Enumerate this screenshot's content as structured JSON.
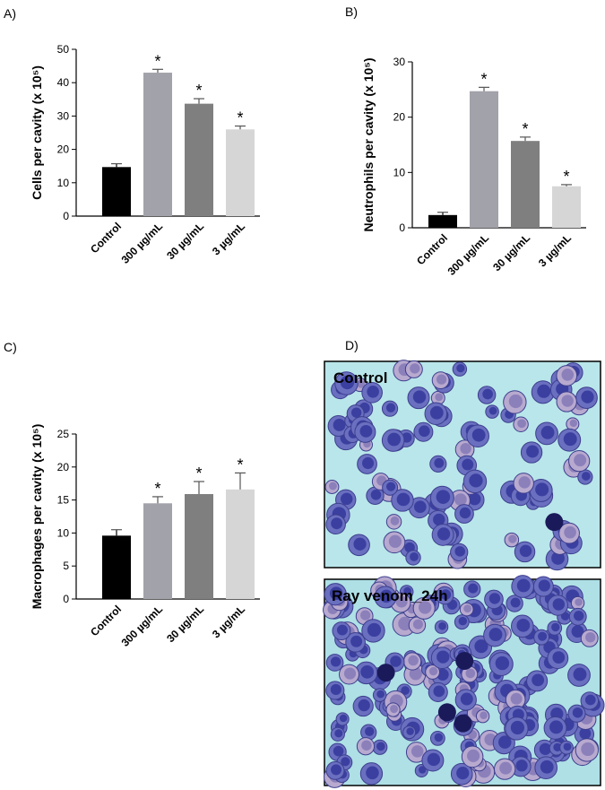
{
  "panels": [
    "A)",
    "B)",
    "C)",
    "D)"
  ],
  "chart_data": [
    {
      "type": "bar",
      "y_label": "Cells per cavity (x 10⁵)",
      "categories": [
        "Control",
        "300 µg/mL",
        "30 µg/mL",
        "3 µg/mL"
      ],
      "values": [
        14.7,
        43,
        33.7,
        26
      ],
      "errors": [
        1,
        1,
        1.5,
        1
      ],
      "significance": [
        null,
        "*",
        "*",
        "*"
      ],
      "colors": [
        "#000000",
        "#a2a2aa",
        "#7f7f7f",
        "#d6d6d6"
      ],
      "ylim": [
        0,
        50
      ],
      "yticks": [
        0,
        10,
        20,
        30,
        40,
        50
      ]
    },
    {
      "type": "bar",
      "y_label": "Neutrophils per cavity (x 10⁵)",
      "categories": [
        "Control",
        "300 µg/mL",
        "30 µg/mL",
        "3 µg/mL"
      ],
      "values": [
        2.3,
        24.7,
        15.7,
        7.5
      ],
      "errors": [
        0.5,
        0.7,
        0.7,
        0.3
      ],
      "significance": [
        null,
        "*",
        "*",
        "*"
      ],
      "colors": [
        "#000000",
        "#a2a2aa",
        "#7f7f7f",
        "#d6d6d6"
      ],
      "ylim": [
        0,
        30
      ],
      "yticks": [
        0,
        10,
        20,
        30
      ]
    },
    {
      "type": "bar",
      "y_label": "Macrophages per cavity (x 10⁵)",
      "categories": [
        "Control",
        "300 µg/mL",
        "30 µg/mL",
        "3 µg/mL"
      ],
      "values": [
        9.6,
        14.5,
        15.9,
        16.6
      ],
      "errors": [
        0.9,
        1,
        1.9,
        2.5
      ],
      "significance": [
        null,
        "*",
        "*",
        "*"
      ],
      "colors": [
        "#000000",
        "#a2a2aa",
        "#7f7f7f",
        "#d6d6d6"
      ],
      "ylim": [
        0,
        25
      ],
      "yticks": [
        0,
        5,
        10,
        15,
        20,
        25
      ]
    }
  ],
  "images": [
    "Control",
    "Ray venom_24h"
  ]
}
